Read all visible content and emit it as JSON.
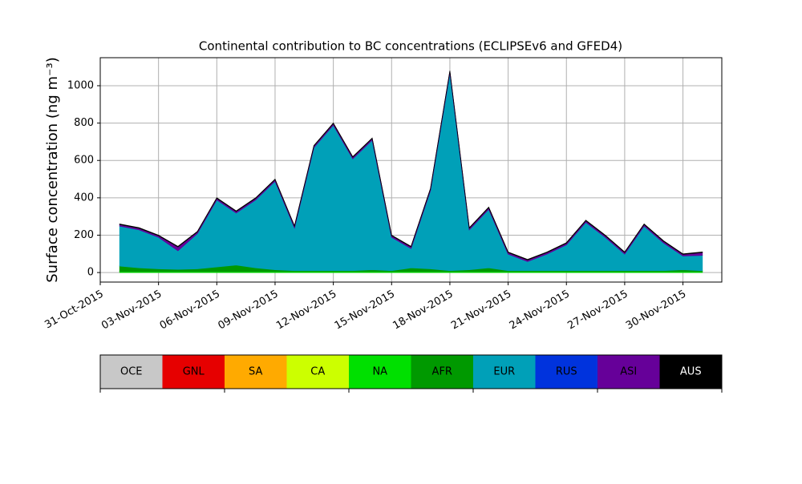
{
  "chart_data": {
    "type": "stacked_area",
    "title": "Continental contribution to BC concentrations (ECLIPSEv6 and GFED4)",
    "y_label": "Surface concentration (ng m⁻³)",
    "x": [
      "2015-11-01",
      "2015-11-02",
      "2015-11-03",
      "2015-11-04",
      "2015-11-05",
      "2015-11-06",
      "2015-11-07",
      "2015-11-08",
      "2015-11-09",
      "2015-11-10",
      "2015-11-11",
      "2015-11-12",
      "2015-11-13",
      "2015-11-14",
      "2015-11-15",
      "2015-11-16",
      "2015-11-17",
      "2015-11-18",
      "2015-11-19",
      "2015-11-20",
      "2015-11-21",
      "2015-11-22",
      "2015-11-23",
      "2015-11-24",
      "2015-11-25",
      "2015-11-26",
      "2015-11-27",
      "2015-11-28",
      "2015-11-29",
      "2015-11-30",
      "2015-12-01"
    ],
    "series": [
      {
        "name": "OCE",
        "color": "#c8c8c8",
        "values": [
          0,
          0,
          0,
          0,
          0,
          0,
          0,
          0,
          0,
          0,
          0,
          0,
          0,
          0,
          0,
          0,
          0,
          0,
          0,
          0,
          0,
          0,
          0,
          0,
          0,
          0,
          0,
          0,
          0,
          0,
          0
        ]
      },
      {
        "name": "GNL",
        "color": "#e60000",
        "values": [
          0,
          0,
          0,
          0,
          0,
          0,
          0,
          0,
          0,
          0,
          0,
          0,
          0,
          0,
          0,
          0,
          0,
          0,
          0,
          0,
          0,
          0,
          0,
          0,
          0,
          0,
          0,
          0,
          0,
          0,
          0
        ]
      },
      {
        "name": "SA",
        "color": "#ffaa00",
        "values": [
          0,
          0,
          0,
          0,
          0,
          0,
          0,
          0,
          0,
          0,
          0,
          0,
          0,
          0,
          0,
          0,
          0,
          0,
          0,
          0,
          0,
          0,
          0,
          0,
          0,
          0,
          0,
          0,
          0,
          0,
          0
        ]
      },
      {
        "name": "CA",
        "color": "#ccff00",
        "values": [
          0,
          0,
          0,
          0,
          0,
          0,
          0,
          0,
          0,
          0,
          0,
          0,
          0,
          0,
          0,
          0,
          0,
          0,
          0,
          0,
          0,
          0,
          0,
          0,
          0,
          0,
          0,
          0,
          0,
          0,
          0
        ]
      },
      {
        "name": "NA",
        "color": "#00e000",
        "values": [
          5,
          5,
          5,
          5,
          5,
          5,
          5,
          5,
          5,
          5,
          5,
          5,
          5,
          5,
          5,
          5,
          5,
          5,
          5,
          5,
          5,
          5,
          5,
          5,
          5,
          5,
          5,
          5,
          5,
          5,
          5
        ]
      },
      {
        "name": "AFR",
        "color": "#009900",
        "values": [
          30,
          20,
          15,
          12,
          15,
          25,
          35,
          20,
          10,
          5,
          5,
          5,
          5,
          10,
          5,
          20,
          15,
          5,
          10,
          20,
          5,
          5,
          5,
          5,
          5,
          5,
          5,
          5,
          5,
          10,
          5
        ]
      },
      {
        "name": "EUR",
        "color": "#00a0b8",
        "values": [
          214,
          204,
          169,
          100,
          189,
          359,
          279,
          364,
          474,
          229,
          659,
          779,
          599,
          694,
          179,
          104,
          419,
          1059,
          214,
          314,
          89,
          49,
          89,
          139,
          259,
          179,
          89,
          239,
          149,
          74,
          82
        ]
      },
      {
        "name": "RUS",
        "color": "#0033dd",
        "values": [
          0,
          0,
          0,
          0,
          0,
          0,
          0,
          0,
          0,
          0,
          0,
          0,
          0,
          0,
          0,
          0,
          0,
          0,
          0,
          0,
          0,
          0,
          0,
          0,
          0,
          0,
          0,
          0,
          0,
          0,
          0
        ]
      },
      {
        "name": "ASI",
        "color": "#660099",
        "values": [
          8,
          8,
          8,
          20,
          8,
          8,
          8,
          8,
          8,
          8,
          8,
          8,
          8,
          8,
          8,
          8,
          8,
          8,
          8,
          8,
          8,
          8,
          8,
          8,
          8,
          8,
          8,
          8,
          8,
          8,
          15
        ]
      },
      {
        "name": "AUS",
        "color": "#000000",
        "values": [
          3,
          3,
          3,
          3,
          3,
          3,
          3,
          3,
          3,
          3,
          3,
          3,
          3,
          3,
          3,
          3,
          3,
          3,
          3,
          3,
          3,
          3,
          3,
          3,
          3,
          3,
          3,
          3,
          3,
          3,
          3
        ]
      }
    ],
    "xlim": [
      "2015-10-31",
      "2015-12-02"
    ],
    "xticks": [
      {
        "value": "2015-10-31",
        "label": "31-Oct-2015"
      },
      {
        "value": "2015-11-03",
        "label": "03-Nov-2015"
      },
      {
        "value": "2015-11-06",
        "label": "06-Nov-2015"
      },
      {
        "value": "2015-11-09",
        "label": "09-Nov-2015"
      },
      {
        "value": "2015-11-12",
        "label": "12-Nov-2015"
      },
      {
        "value": "2015-11-15",
        "label": "15-Nov-2015"
      },
      {
        "value": "2015-11-18",
        "label": "18-Nov-2015"
      },
      {
        "value": "2015-11-21",
        "label": "21-Nov-2015"
      },
      {
        "value": "2015-11-24",
        "label": "24-Nov-2015"
      },
      {
        "value": "2015-11-27",
        "label": "27-Nov-2015"
      },
      {
        "value": "2015-11-30",
        "label": "30-Nov-2015"
      }
    ],
    "ylim": [
      -51,
      1150
    ],
    "yticks": [
      0,
      200,
      400,
      600,
      800,
      1000
    ],
    "grid": true
  }
}
